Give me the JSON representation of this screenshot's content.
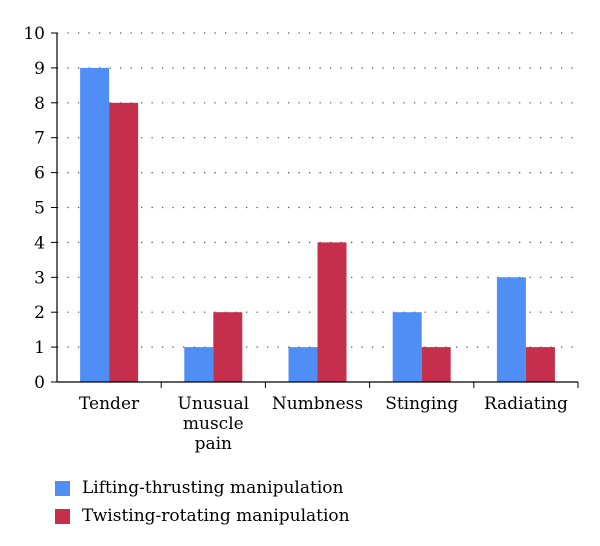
{
  "chart_data": {
    "type": "bar",
    "categories": [
      [
        "Tender"
      ],
      [
        "Unusual",
        "muscle",
        "pain"
      ],
      [
        "Numbness"
      ],
      [
        "Stinging"
      ],
      [
        "Radiating"
      ]
    ],
    "series": [
      {
        "name": "Lifting-thrusting manipulation",
        "values": [
          9,
          1,
          1,
          2,
          3
        ],
        "color": "#4f8ef5"
      },
      {
        "name": "Twisting-rotating manipulation",
        "values": [
          8,
          2,
          4,
          1,
          1
        ],
        "color": "#c62f4b"
      }
    ],
    "ylim": [
      0,
      10
    ],
    "yticks": [
      0,
      1,
      2,
      3,
      4,
      5,
      6,
      7,
      8,
      9,
      10
    ],
    "grid": "dotted horizontal",
    "legend_position": "bottom-left"
  }
}
